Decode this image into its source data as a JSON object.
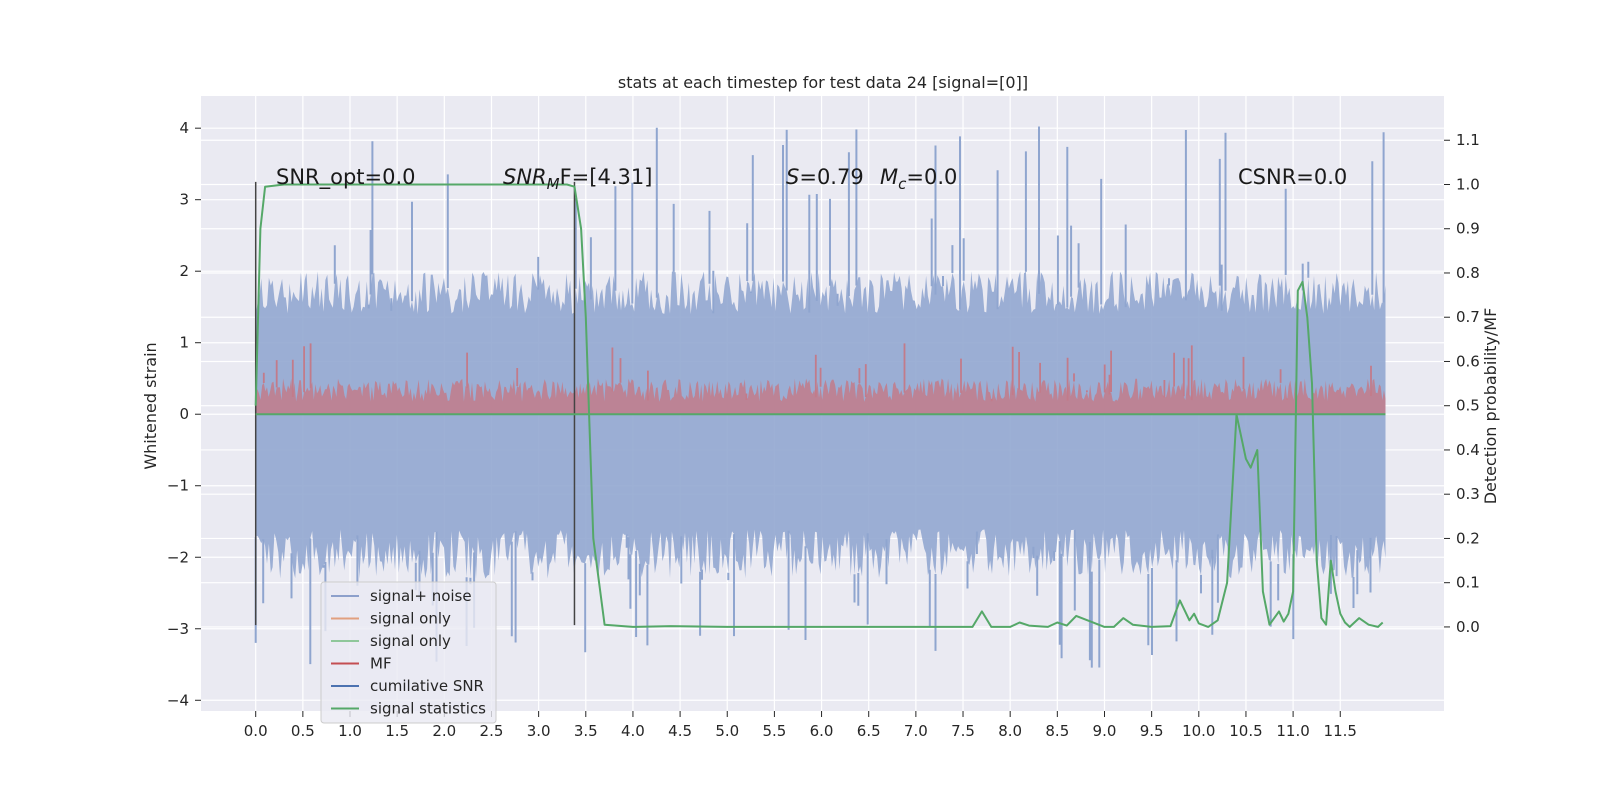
{
  "chart_data": {
    "type": "line",
    "title": "stats at each timestep for test data 24 [signal=[0]]",
    "xlabel": "",
    "ylabel": "Whitened strain",
    "y2label": "Detection probability/MF",
    "xlim": [
      -0.58,
      12.6
    ],
    "ylim": [
      -4.15,
      4.45
    ],
    "y2lim": [
      -0.19,
      1.2
    ],
    "x_ticks": [
      0.0,
      0.5,
      1.0,
      1.5,
      2.0,
      2.5,
      3.0,
      3.5,
      4.0,
      4.5,
      5.0,
      5.5,
      6.0,
      6.5,
      7.0,
      7.5,
      8.0,
      8.5,
      9.0,
      9.5,
      10.0,
      10.5,
      11.0,
      11.5
    ],
    "x_tick_labels": [
      "0.0",
      "0.5",
      "1.0",
      "1.5",
      "2.0",
      "2.5",
      "3.0",
      "3.5",
      "4.0",
      "4.5",
      "5.0",
      "5.5",
      "6.0",
      "6.5",
      "7.0",
      "7.5",
      "8.0",
      "8.5",
      "9.0",
      "9.5",
      "10.0",
      "10.5",
      "11.0",
      "11.5"
    ],
    "y_ticks": [
      -4,
      -3,
      -2,
      -1,
      0,
      1,
      2,
      3,
      4
    ],
    "y_tick_labels": [
      "−4",
      "−3",
      "−2",
      "−1",
      "0",
      "1",
      "2",
      "3",
      "4"
    ],
    "y2_ticks": [
      0.0,
      0.1,
      0.2,
      0.3,
      0.4,
      0.5,
      0.6,
      0.7,
      0.8,
      0.9,
      1.0,
      1.1
    ],
    "y2_tick_labels": [
      "0.0",
      "0.1",
      "0.2",
      "0.3",
      "0.4",
      "0.5",
      "0.6",
      "0.7",
      "0.8",
      "0.9",
      "1.0",
      "1.1"
    ],
    "grid": true,
    "legend_position": "lower-left",
    "legend": [
      {
        "label": "signal+ noise",
        "color": "#8da0cb"
      },
      {
        "label": "signal only",
        "color": "#e1a07f"
      },
      {
        "label": "signal only",
        "color": "#8fc79a"
      },
      {
        "label": "MF",
        "color": "#c44e52"
      },
      {
        "label": "cumilative SNR",
        "color": "#4c72b0"
      },
      {
        "label": "signal statistics",
        "color": "#55a868"
      }
    ],
    "annotations": {
      "snr_opt": "SNR_opt=0.0",
      "snr_mf": "SNR",
      "snr_mf_sub": "M",
      "snr_mf_tail": "F=[4.31]",
      "s_value": "S",
      "s_value_tail": "=0.79",
      "mc_value": "M",
      "mc_value_sub": "c",
      "mc_value_tail": "=0.0",
      "csnr": "CSNR=0.0"
    },
    "noise_band": {
      "x_start": 0.0,
      "x_end": 11.98,
      "typical_min": -2.3,
      "typical_max": 2.0,
      "peak_max": 4.05,
      "peak_min": -3.6
    },
    "mf_band": {
      "x_start": 0.0,
      "x_end": 11.98,
      "min": 0.0,
      "typical_max": 0.5,
      "peak_max": 1.0
    },
    "markers": [
      {
        "x": 0.0,
        "y": [
          -2.95,
          3.25
        ]
      },
      {
        "x": 3.38,
        "y": [
          -2.95,
          3.25
        ]
      }
    ],
    "series": [
      {
        "name": "signal statistics",
        "axis": "right",
        "color": "#55a868",
        "x": [
          0.0,
          0.05,
          0.1,
          0.3,
          0.6,
          1.0,
          2.0,
          3.0,
          3.3,
          3.38,
          3.45,
          3.5,
          3.58,
          3.7,
          4.0,
          4.4,
          5.0,
          6.0,
          7.0,
          7.6,
          7.7,
          7.8,
          7.9,
          8.0,
          8.1,
          8.2,
          8.4,
          8.5,
          8.6,
          8.7,
          9.0,
          9.1,
          9.2,
          9.3,
          9.5,
          9.7,
          9.8,
          9.9,
          9.95,
          10.0,
          10.1,
          10.2,
          10.3,
          10.4,
          10.5,
          10.55,
          10.62,
          10.68,
          10.75,
          10.85,
          10.9,
          10.95,
          11.0,
          11.05,
          11.1,
          11.15,
          11.2,
          11.25,
          11.3,
          11.35,
          11.4,
          11.45,
          11.5,
          11.55,
          11.6,
          11.7,
          11.8,
          11.9,
          11.95
        ],
        "y": [
          0.5,
          0.9,
          0.995,
          1.0,
          1.0,
          1.0,
          1.0,
          1.0,
          1.0,
          0.995,
          0.9,
          0.7,
          0.2,
          0.005,
          0.0,
          0.002,
          0.0,
          0.0,
          0.0,
          0.0,
          0.035,
          0.0,
          0.0,
          0.0,
          0.01,
          0.003,
          0.0,
          0.01,
          0.003,
          0.025,
          0.0,
          0.0,
          0.02,
          0.005,
          0.0,
          0.002,
          0.06,
          0.015,
          0.03,
          0.008,
          0.0,
          0.015,
          0.1,
          0.48,
          0.38,
          0.36,
          0.4,
          0.08,
          0.005,
          0.035,
          0.012,
          0.03,
          0.08,
          0.76,
          0.78,
          0.7,
          0.55,
          0.15,
          0.02,
          0.005,
          0.15,
          0.08,
          0.03,
          0.01,
          0.0,
          0.02,
          0.005,
          0.0,
          0.01
        ]
      },
      {
        "name": "signal statistics zero line",
        "axis": "left",
        "color": "#55a868",
        "x": [
          0.0,
          11.98
        ],
        "y": [
          0.0,
          0.0
        ]
      }
    ]
  }
}
